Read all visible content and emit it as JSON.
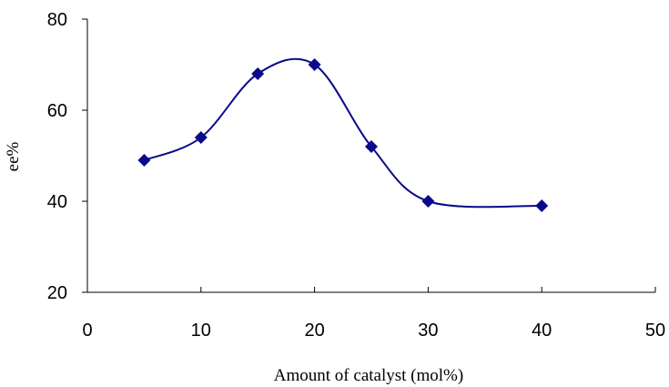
{
  "chart_data": {
    "type": "line",
    "title": "",
    "xlabel": "Amount of catalyst (mol%)",
    "ylabel": "ee%",
    "xlim": [
      0,
      50
    ],
    "ylim": [
      20,
      80
    ],
    "xticks": [
      0,
      10,
      20,
      30,
      40,
      50
    ],
    "yticks": [
      20,
      40,
      60,
      80
    ],
    "grid": false,
    "legend": "none",
    "smooth": true,
    "marker": "diamond",
    "series": [
      {
        "x": [
          5,
          10,
          15,
          20,
          25,
          30,
          40
        ],
        "y": [
          49,
          54,
          68,
          70,
          52,
          40,
          39
        ],
        "color": "#0a0a8a"
      }
    ]
  }
}
